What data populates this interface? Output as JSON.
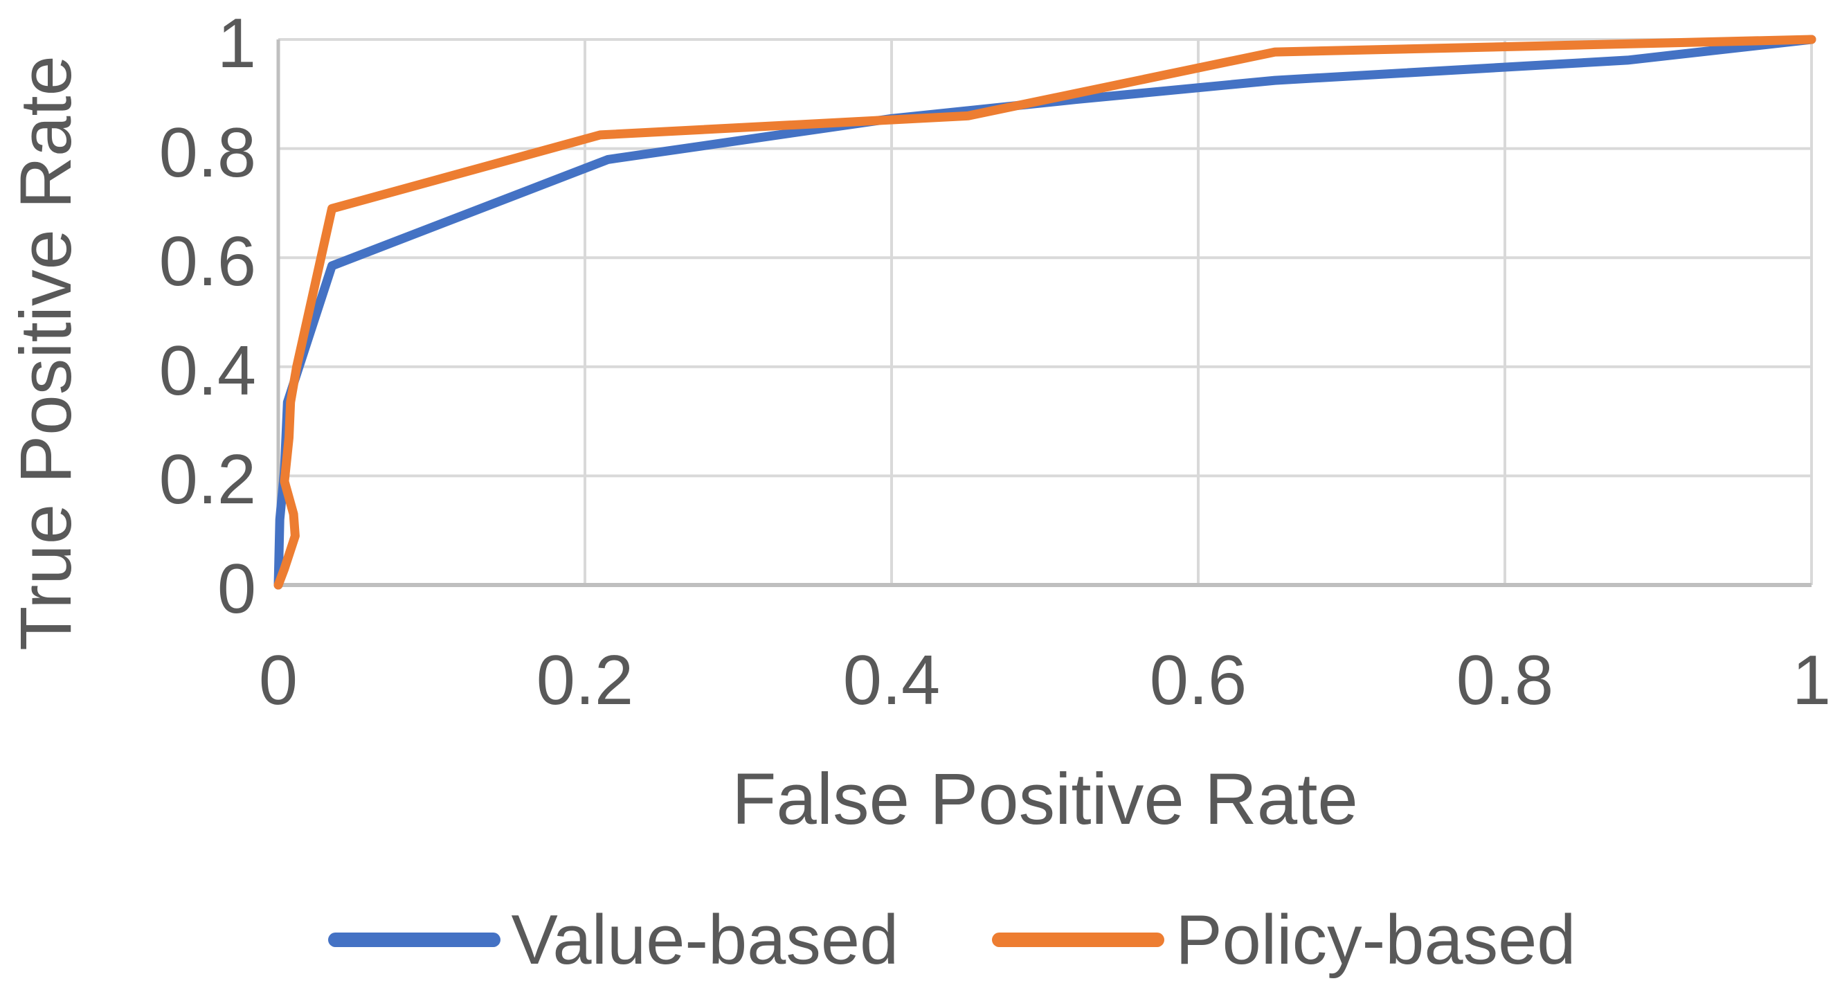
{
  "chart_data": {
    "type": "line",
    "title": "",
    "xlabel": "False Positive Rate",
    "ylabel": "True Positive Rate",
    "xlim": [
      0,
      1
    ],
    "ylim": [
      0,
      1
    ],
    "grid": true,
    "legend_position": "bottom",
    "x_ticks": [
      0,
      0.2,
      0.4,
      0.6,
      0.8,
      1
    ],
    "y_ticks": [
      0,
      0.2,
      0.4,
      0.6,
      0.8,
      1
    ],
    "x_tick_labels": [
      "0",
      "0.2",
      "0.4",
      "0.6",
      "0.8",
      "1"
    ],
    "y_tick_labels": [
      "0",
      "0.2",
      "0.4",
      "0.6",
      "0.8",
      "1"
    ],
    "series": [
      {
        "name": "Value-based",
        "color": "#4472C4",
        "points": [
          [
            0,
            0
          ],
          [
            0.001,
            0.12
          ],
          [
            0.004,
            0.21
          ],
          [
            0.006,
            0.335
          ],
          [
            0.035,
            0.585
          ],
          [
            0.215,
            0.78
          ],
          [
            0.4,
            0.855
          ],
          [
            0.52,
            0.89
          ],
          [
            0.65,
            0.925
          ],
          [
            0.88,
            0.962
          ],
          [
            1,
            1
          ]
        ]
      },
      {
        "name": "Policy-based",
        "color": "#ED7D31",
        "points": [
          [
            0,
            0
          ],
          [
            0.004,
            0.03
          ],
          [
            0.011,
            0.09
          ],
          [
            0.01,
            0.13
          ],
          [
            0.004,
            0.19
          ],
          [
            0.007,
            0.27
          ],
          [
            0.008,
            0.335
          ],
          [
            0.012,
            0.4
          ],
          [
            0.035,
            0.69
          ],
          [
            0.21,
            0.825
          ],
          [
            0.45,
            0.86
          ],
          [
            0.65,
            0.977
          ],
          [
            0.82,
            0.988
          ],
          [
            1,
            1
          ]
        ]
      }
    ]
  },
  "colors": {
    "background": "#FFFFFF",
    "gridline": "#D9D9D9",
    "axis_line": "#BFBFBF",
    "text": "#595959"
  }
}
